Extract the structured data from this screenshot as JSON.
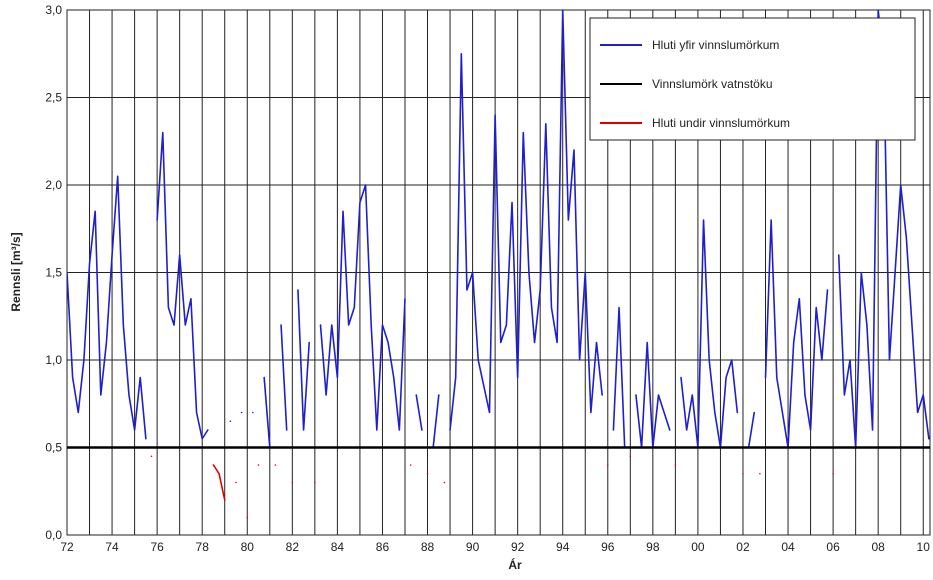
{
  "chart_data": {
    "type": "line",
    "xlabel": "Ár",
    "ylabel": "Rennsli [m³/s]",
    "xlim": [
      1972,
      2010.3
    ],
    "ylim": [
      0,
      3
    ],
    "xticks": [
      {
        "value": 1972,
        "label": "72"
      },
      {
        "value": 1974,
        "label": "74"
      },
      {
        "value": 1976,
        "label": "76"
      },
      {
        "value": 1978,
        "label": "78"
      },
      {
        "value": 1980,
        "label": "80"
      },
      {
        "value": 1982,
        "label": "82"
      },
      {
        "value": 1984,
        "label": "84"
      },
      {
        "value": 1986,
        "label": "86"
      },
      {
        "value": 1988,
        "label": "88"
      },
      {
        "value": 1990,
        "label": "90"
      },
      {
        "value": 1992,
        "label": "92"
      },
      {
        "value": 1994,
        "label": "94"
      },
      {
        "value": 1996,
        "label": "96"
      },
      {
        "value": 1998,
        "label": "98"
      },
      {
        "value": 2000,
        "label": "00"
      },
      {
        "value": 2002,
        "label": "02"
      },
      {
        "value": 2004,
        "label": "04"
      },
      {
        "value": 2006,
        "label": "06"
      },
      {
        "value": 2008,
        "label": "08"
      },
      {
        "value": 2010,
        "label": "10"
      }
    ],
    "xminor_ticks": [
      1973,
      1975,
      1977,
      1979,
      1981,
      1983,
      1985,
      1987,
      1989,
      1991,
      1993,
      1995,
      1997,
      1999,
      2001,
      2003,
      2005,
      2007,
      2009
    ],
    "yticks": [
      {
        "value": 0,
        "label": "0,0"
      },
      {
        "value": 0.5,
        "label": "0,5"
      },
      {
        "value": 1,
        "label": "1,0"
      },
      {
        "value": 1.5,
        "label": "1,5"
      },
      {
        "value": 2,
        "label": "2,0"
      },
      {
        "value": 2.5,
        "label": "2,5"
      },
      {
        "value": 3,
        "label": "3,0"
      }
    ],
    "grid": true,
    "legend": "upper right",
    "x": [
      1972,
      1972.25,
      1972.5,
      1972.75,
      1973,
      1973.25,
      1973.5,
      1973.75,
      1974,
      1974.25,
      1974.5,
      1974.75,
      1975,
      1975.25,
      1975.5,
      1975.75,
      1976,
      1976.25,
      1976.5,
      1976.75,
      1977,
      1977.25,
      1977.5,
      1977.75,
      1978,
      1978.25,
      1978.5,
      1978.75,
      1979,
      1979.25,
      1979.5,
      1979.75,
      1980,
      1980.25,
      1980.5,
      1980.75,
      1981,
      1981.25,
      1981.5,
      1981.75,
      1982,
      1982.25,
      1982.5,
      1982.75,
      1983,
      1983.25,
      1983.5,
      1983.75,
      1984,
      1984.25,
      1984.5,
      1984.75,
      1985,
      1985.25,
      1985.5,
      1985.75,
      1986,
      1986.25,
      1986.5,
      1986.75,
      1987,
      1987.25,
      1987.5,
      1987.75,
      1988,
      1988.25,
      1988.5,
      1988.75,
      1989,
      1989.25,
      1989.5,
      1989.75,
      1990,
      1990.25,
      1990.5,
      1990.75,
      1991,
      1991.25,
      1991.5,
      1991.75,
      1992,
      1992.25,
      1992.5,
      1992.75,
      1993,
      1993.25,
      1993.5,
      1993.75,
      1994,
      1994.25,
      1994.5,
      1994.75,
      1995,
      1995.25,
      1995.5,
      1995.75,
      1996,
      1996.25,
      1996.5,
      1996.75,
      1997,
      1997.25,
      1997.5,
      1997.75,
      1998,
      1998.25,
      1998.5,
      1998.75,
      1999,
      1999.25,
      1999.5,
      1999.75,
      2000,
      2000.25,
      2000.5,
      2000.75,
      2001,
      2001.25,
      2001.5,
      2001.75,
      2002,
      2002.25,
      2002.5,
      2002.75,
      2003,
      2003.25,
      2003.5,
      2003.75,
      2004,
      2004.25,
      2004.5,
      2004.75,
      2005,
      2005.25,
      2005.5,
      2005.75,
      2006,
      2006.25,
      2006.5,
      2006.75,
      2007,
      2007.25,
      2007.5,
      2007.75,
      2008,
      2008.25,
      2008.5,
      2008.75,
      2009,
      2009.25,
      2009.5,
      2009.75,
      2010,
      2010.25
    ],
    "series": [
      {
        "name": "Hluti yfir vinnslumörkum",
        "color": "#1f1fcc",
        "values": [
          1.5,
          0.9,
          0.7,
          1.0,
          1.55,
          1.85,
          0.8,
          1.1,
          1.6,
          2.05,
          1.2,
          0.8,
          0.6,
          0.9,
          0.55,
          null,
          1.8,
          2.3,
          1.3,
          1.2,
          1.6,
          1.2,
          1.35,
          0.7,
          0.55,
          0.6,
          null,
          null,
          null,
          0.65,
          null,
          0.7,
          null,
          0.7,
          null,
          0.9,
          0.5,
          null,
          1.2,
          0.6,
          null,
          1.4,
          0.6,
          1.1,
          null,
          1.2,
          0.8,
          1.2,
          0.9,
          1.85,
          1.2,
          1.3,
          1.9,
          2.0,
          1.2,
          0.6,
          1.2,
          1.1,
          0.9,
          0.6,
          1.35,
          null,
          0.8,
          0.6,
          null,
          0.5,
          0.8,
          null,
          0.6,
          0.9,
          2.75,
          1.4,
          1.5,
          1.0,
          0.85,
          0.7,
          2.4,
          1.1,
          1.2,
          1.9,
          0.9,
          2.3,
          1.5,
          1.1,
          1.4,
          2.35,
          1.3,
          1.1,
          3.0,
          1.8,
          2.2,
          1.0,
          1.5,
          0.7,
          1.1,
          0.8,
          null,
          0.6,
          1.3,
          0.5,
          null,
          0.8,
          0.5,
          1.1,
          0.5,
          0.8,
          0.7,
          0.6,
          null,
          0.9,
          0.6,
          0.8,
          0.5,
          1.8,
          1.0,
          0.7,
          0.5,
          0.9,
          1.0,
          0.7,
          null,
          0.5,
          0.7,
          null,
          0.9,
          1.8,
          0.9,
          0.7,
          0.5,
          1.1,
          1.35,
          0.8,
          0.6,
          1.3,
          1.0,
          1.4,
          null,
          1.6,
          0.8,
          1.0,
          0.5,
          1.5,
          1.2,
          0.6,
          3.0,
          2.7,
          1.0,
          1.5,
          2.0,
          1.7,
          1.2,
          0.7,
          0.8,
          0.55
        ]
      },
      {
        "name": "Vinnslumörk vatnstöku",
        "color": "#000000",
        "x": [
          1972,
          2010.3
        ],
        "values": [
          0.5,
          0.5
        ]
      },
      {
        "name": "Hluti undir vinnslumörkum",
        "color": "#e00000",
        "values": [
          null,
          null,
          null,
          null,
          null,
          null,
          null,
          null,
          null,
          null,
          null,
          null,
          null,
          null,
          null,
          0.45,
          null,
          null,
          null,
          null,
          null,
          null,
          null,
          null,
          null,
          null,
          0.4,
          0.35,
          0.2,
          null,
          0.3,
          null,
          0.1,
          null,
          0.4,
          null,
          null,
          0.4,
          null,
          null,
          0.3,
          null,
          null,
          null,
          0.3,
          null,
          null,
          null,
          null,
          null,
          null,
          null,
          null,
          null,
          null,
          null,
          null,
          null,
          null,
          null,
          null,
          0.4,
          null,
          null,
          0.35,
          null,
          null,
          0.3,
          null,
          null,
          null,
          null,
          null,
          null,
          null,
          null,
          null,
          null,
          null,
          null,
          null,
          null,
          null,
          null,
          null,
          null,
          null,
          null,
          null,
          null,
          null,
          null,
          null,
          null,
          null,
          null,
          0.4,
          null,
          null,
          null,
          0.45,
          null,
          null,
          null,
          null,
          null,
          null,
          null,
          0.4,
          null,
          null,
          null,
          null,
          null,
          null,
          null,
          null,
          null,
          null,
          null,
          0.35,
          null,
          null,
          0.35,
          null,
          null,
          null,
          null,
          null,
          null,
          null,
          null,
          null,
          null,
          null,
          null,
          0.35,
          null,
          null,
          null,
          null,
          null,
          null,
          null,
          null,
          null,
          null,
          null,
          null,
          null,
          null,
          null,
          null,
          null
        ]
      }
    ]
  }
}
